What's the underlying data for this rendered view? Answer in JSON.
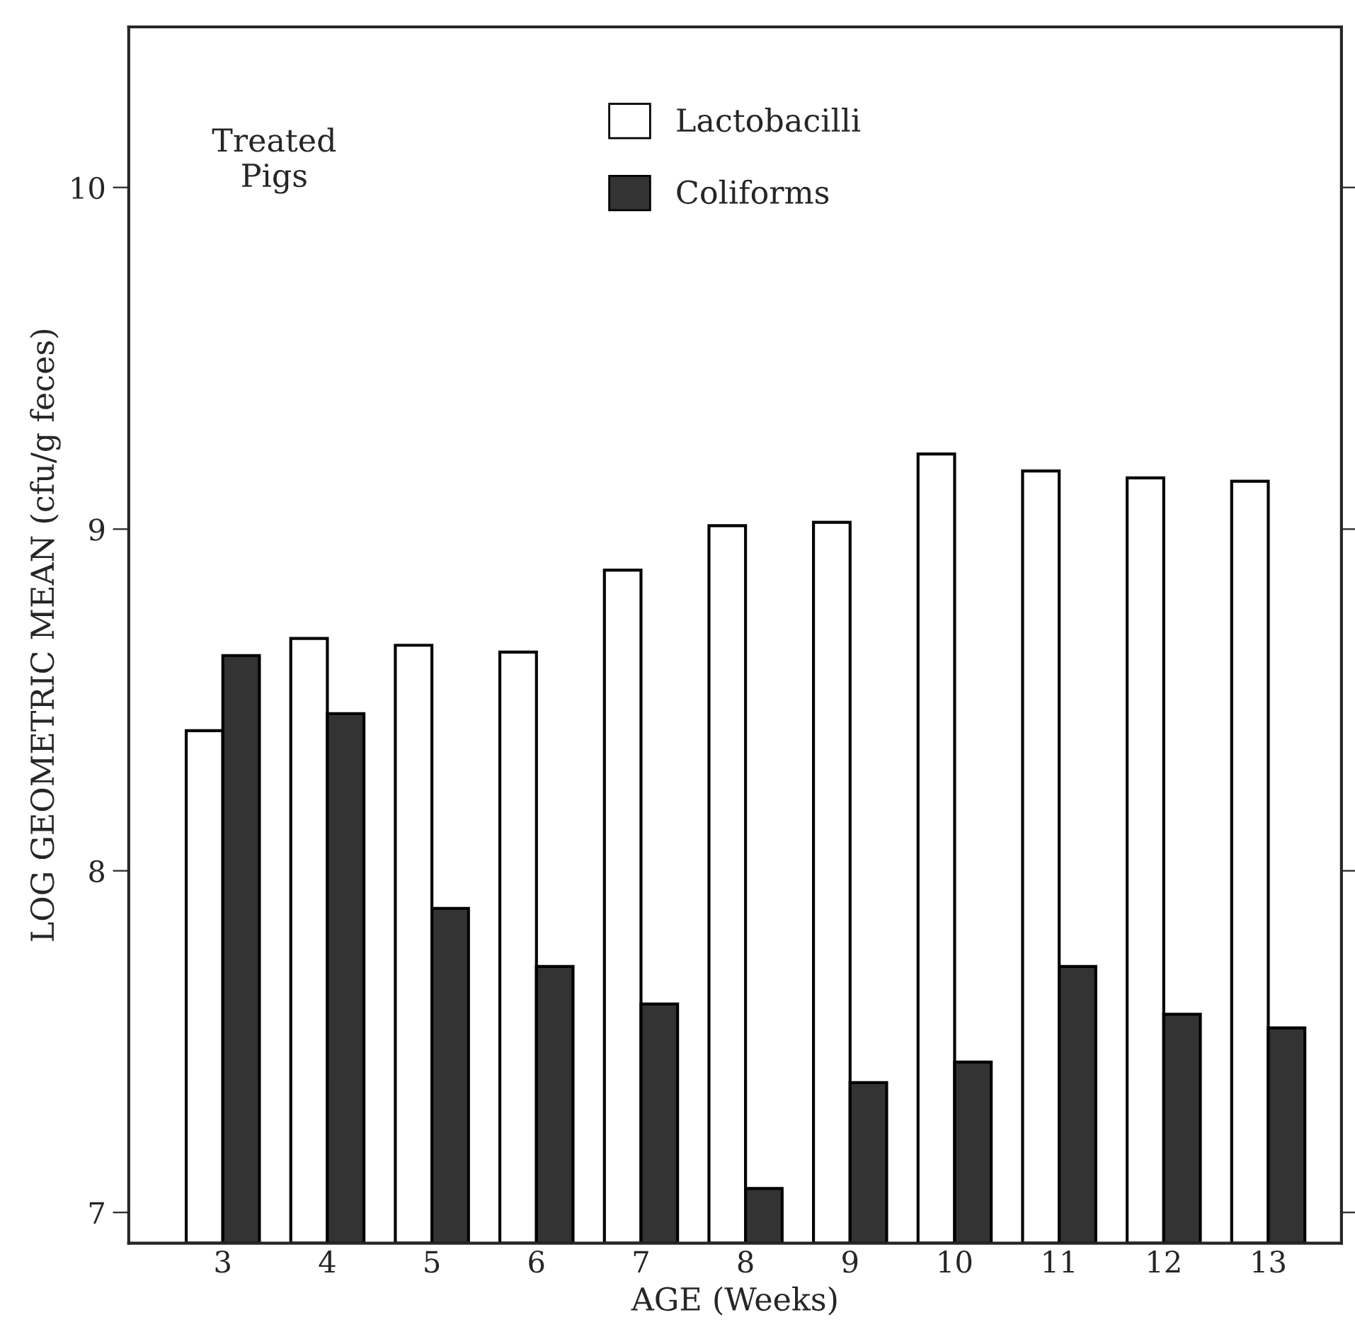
{
  "chart_data": {
    "type": "bar",
    "xlabel": "AGE (Weeks)",
    "ylabel": "LOG GEOMETRIC MEAN (cfu/g feces)",
    "categories": [
      "3",
      "4",
      "5",
      "6",
      "7",
      "8",
      "9",
      "10",
      "11",
      "12",
      "13"
    ],
    "series": [
      {
        "name": "Lactobacilli",
        "color": "#ffffff",
        "values": [
          8.41,
          8.68,
          8.66,
          8.64,
          8.88,
          9.01,
          9.02,
          9.22,
          9.17,
          9.15,
          9.14
        ]
      },
      {
        "name": "Coliforms",
        "color": "#333333",
        "values": [
          8.63,
          8.46,
          7.89,
          7.72,
          7.61,
          7.07,
          7.38,
          7.44,
          7.72,
          7.58,
          7.54
        ]
      }
    ],
    "ylim": [
      6.91,
      10.47
    ],
    "yticks": [
      7,
      8,
      9,
      10
    ],
    "grid": false,
    "legend": "top",
    "annotations": [
      "Treated\nPigs"
    ]
  }
}
